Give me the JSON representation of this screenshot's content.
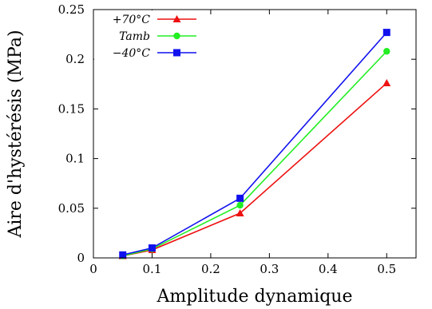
{
  "chart_data": {
    "type": "line",
    "xlabel": "Amplitude dynamique",
    "ylabel": "Aire d'hystérésis (MPa)",
    "xlim": [
      0,
      0.55
    ],
    "ylim": [
      0,
      0.25
    ],
    "xticks": [
      {
        "value": 0,
        "label": "0"
      },
      {
        "value": 0.1,
        "label": "0.1"
      },
      {
        "value": 0.2,
        "label": "0.2"
      },
      {
        "value": 0.3,
        "label": "0.3"
      },
      {
        "value": 0.4,
        "label": "0.4"
      },
      {
        "value": 0.5,
        "label": "0.5"
      }
    ],
    "yticks": [
      {
        "value": 0,
        "label": "0"
      },
      {
        "value": 0.05,
        "label": "0.05"
      },
      {
        "value": 0.1,
        "label": "0.1"
      },
      {
        "value": 0.15,
        "label": "0.15"
      },
      {
        "value": 0.2,
        "label": "0.2"
      },
      {
        "value": 0.25,
        "label": "0.25"
      }
    ],
    "x": [
      0.05,
      0.1,
      0.25,
      0.5
    ],
    "legend_position": "top-left",
    "grid": false,
    "series": [
      {
        "name": "+70°C",
        "color": "#ee1111",
        "marker": "triangle",
        "values": [
          0.002,
          0.008,
          0.045,
          0.176
        ]
      },
      {
        "name": "Tamb",
        "color": "#22ee22",
        "marker": "circle",
        "values": [
          0.002,
          0.009,
          0.053,
          0.208
        ]
      },
      {
        "name": "−40°C",
        "color": "#1111ee",
        "marker": "square",
        "values": [
          0.003,
          0.01,
          0.06,
          0.227
        ]
      }
    ]
  }
}
